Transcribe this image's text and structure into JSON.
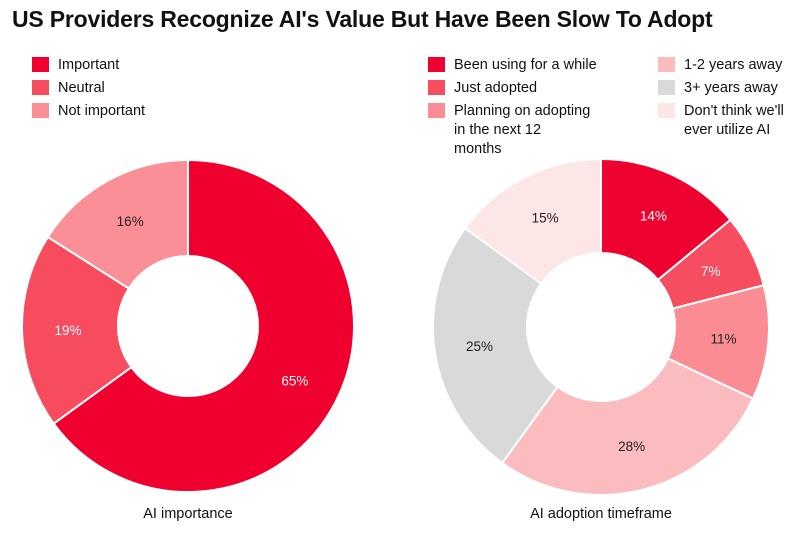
{
  "title": "US Providers Recognize AI's Value But Have Been Slow To Adopt",
  "chart_data": [
    {
      "type": "pie",
      "variant": "donut",
      "title": "AI importance",
      "categories": [
        "Important",
        "Neutral",
        "Not important"
      ],
      "values": [
        65,
        19,
        16
      ],
      "value_labels": [
        "65%",
        "19%",
        "16%"
      ],
      "colors": [
        "#f0002e",
        "#f64c5e",
        "#fb8f97"
      ],
      "label_colors": [
        "#ffffff",
        "#ffffff",
        "#222222"
      ],
      "legend_position": "top-left"
    },
    {
      "type": "pie",
      "variant": "donut",
      "title": "AI adoption timeframe",
      "categories": [
        "Been using for a while",
        "Just adopted",
        "Planning on adopting in the next 12 months",
        "1-2 years away",
        "3+ years away",
        "Don't think we'll ever utilize AI"
      ],
      "legend_lines": [
        [
          "Been using for a while"
        ],
        [
          "Just adopted"
        ],
        [
          "Planning on adopting",
          "in the next 12",
          "months"
        ],
        [
          "1-2 years away"
        ],
        [
          "3+ years away"
        ],
        [
          "Don't think we'll",
          "ever utilize AI"
        ]
      ],
      "values": [
        14,
        7,
        11,
        28,
        25,
        15
      ],
      "value_labels": [
        "14%",
        "7%",
        "11%",
        "28%",
        "25%",
        "15%"
      ],
      "colors": [
        "#ee0330",
        "#f64e60",
        "#fb8c94",
        "#fbbcc0",
        "#d9d9d9",
        "#fde6e6"
      ],
      "label_colors": [
        "#ffffff",
        "#ffffff",
        "#222222",
        "#222222",
        "#222222",
        "#222222"
      ],
      "legend_position": "top"
    }
  ]
}
